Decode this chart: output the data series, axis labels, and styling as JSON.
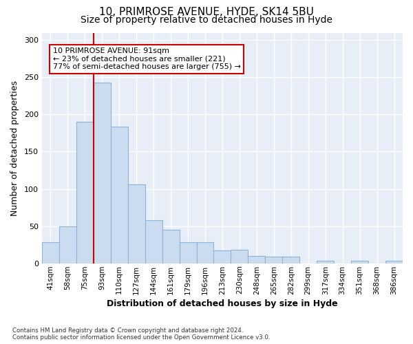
{
  "title1": "10, PRIMROSE AVENUE, HYDE, SK14 5BU",
  "title2": "Size of property relative to detached houses in Hyde",
  "xlabel": "Distribution of detached houses by size in Hyde",
  "ylabel": "Number of detached properties",
  "categories": [
    "41sqm",
    "58sqm",
    "75sqm",
    "93sqm",
    "110sqm",
    "127sqm",
    "144sqm",
    "161sqm",
    "179sqm",
    "196sqm",
    "213sqm",
    "230sqm",
    "248sqm",
    "265sqm",
    "282sqm",
    "299sqm",
    "317sqm",
    "334sqm",
    "351sqm",
    "368sqm",
    "386sqm"
  ],
  "values": [
    28,
    50,
    190,
    243,
    184,
    106,
    58,
    45,
    28,
    28,
    17,
    18,
    10,
    9,
    9,
    0,
    3,
    0,
    3,
    0,
    3
  ],
  "bar_color": "#ccdcf0",
  "bar_edge_color": "#8ab4d8",
  "vline_index": 3,
  "vline_color": "#cc0000",
  "annotation_text": "10 PRIMROSE AVENUE: 91sqm\n← 23% of detached houses are smaller (221)\n77% of semi-detached houses are larger (755) →",
  "annotation_box_facecolor": "#ffffff",
  "annotation_box_edgecolor": "#cc0000",
  "ylim": [
    0,
    310
  ],
  "yticks": [
    0,
    50,
    100,
    150,
    200,
    250,
    300
  ],
  "plot_bg_color": "#e8eef8",
  "footnote": "Contains HM Land Registry data © Crown copyright and database right 2024.\nContains public sector information licensed under the Open Government Licence v3.0.",
  "title1_fontsize": 11,
  "title2_fontsize": 10,
  "xlabel_fontsize": 9,
  "ylabel_fontsize": 9
}
